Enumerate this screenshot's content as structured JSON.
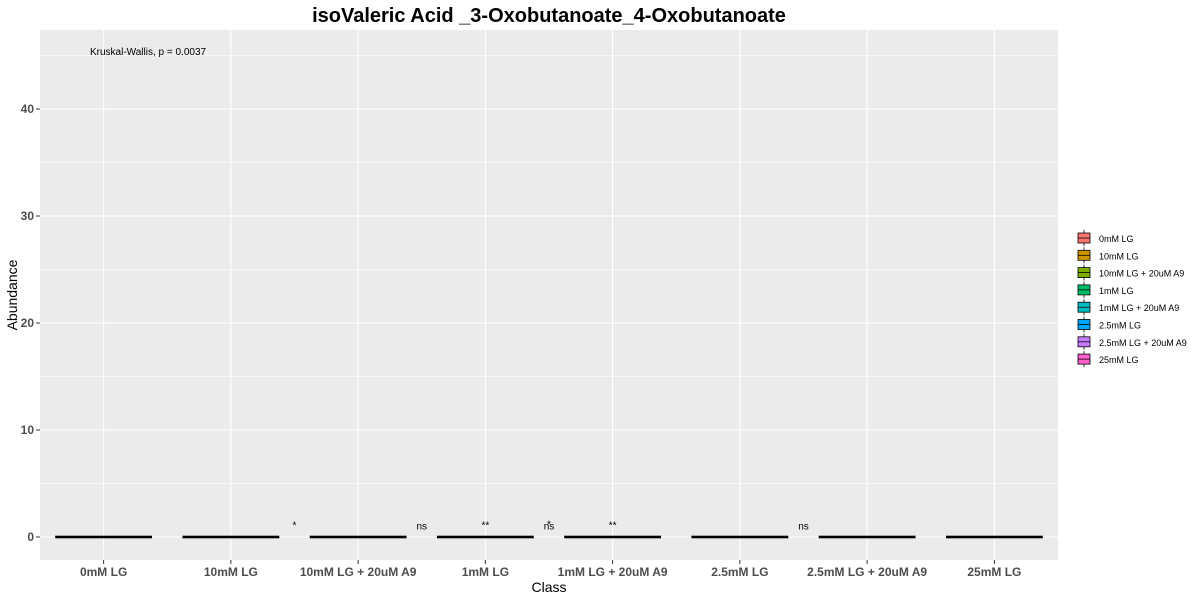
{
  "chart_data": {
    "type": "box",
    "title": "isoValeric Acid _3-Oxobutanoate_4-Oxobutanoate",
    "xlabel": "Class",
    "ylabel": "Abundance",
    "ylim": [
      -2.2,
      47
    ],
    "y_ticks": [
      0,
      10,
      20,
      30,
      40
    ],
    "categories": [
      "0mM LG",
      "10mM LG",
      "10mM LG + 20uM A9",
      "1mM LG",
      "1mM LG + 20uM A9",
      "2.5mM LG",
      "2.5mM LG + 20uM A9",
      "25mM LG"
    ],
    "series": [
      {
        "name": "0mM LG",
        "values": [
          0.0
        ]
      },
      {
        "name": "10mM LG",
        "values": [
          0.0
        ]
      },
      {
        "name": "10mM LG + 20uM A9",
        "values": [
          0.0
        ]
      },
      {
        "name": "1mM LG",
        "values": [
          0.0
        ]
      },
      {
        "name": "1mM LG + 20uM A9",
        "values": [
          0.0
        ]
      },
      {
        "name": "2.5mM LG",
        "values": [
          0.0
        ]
      },
      {
        "name": "2.5mM LG + 20uM A9",
        "values": [
          0.0
        ]
      },
      {
        "name": "25mM LG",
        "values": [
          0.0
        ]
      }
    ],
    "significance_labels": [
      {
        "label": "*",
        "x_index": 1.5,
        "y": 0.8
      },
      {
        "label": "ns",
        "x_index": 2.5,
        "y": 0.7
      },
      {
        "label": "**",
        "x_index": 3.0,
        "y": 0.8
      },
      {
        "label": "ns",
        "x_index": 3.5,
        "y": 0.7
      },
      {
        "label": "*",
        "x_index": 3.5,
        "y": 0.9
      },
      {
        "label": "**",
        "x_index": 4.0,
        "y": 0.8
      },
      {
        "label": "ns",
        "x_index": 5.5,
        "y": 0.7
      }
    ],
    "stat_annotation": "Kruskal-Wallis, p = 0.0037",
    "legend": {
      "position": "right",
      "entries": [
        "0mM LG",
        "10mM LG",
        "10mM LG + 20uM A9",
        "1mM LG",
        "1mM LG + 20uM A9",
        "2.5mM LG",
        "2.5mM LG + 20uM A9",
        "25mM LG"
      ]
    },
    "colors": [
      "#F8766D",
      "#CD9600",
      "#7CAE00",
      "#00BE67",
      "#00BFC4",
      "#00A9FF",
      "#C77CFF",
      "#FF61CC"
    ],
    "panel_background": "#EBEBEB",
    "grid_color": "#FFFFFF",
    "grid": true
  }
}
